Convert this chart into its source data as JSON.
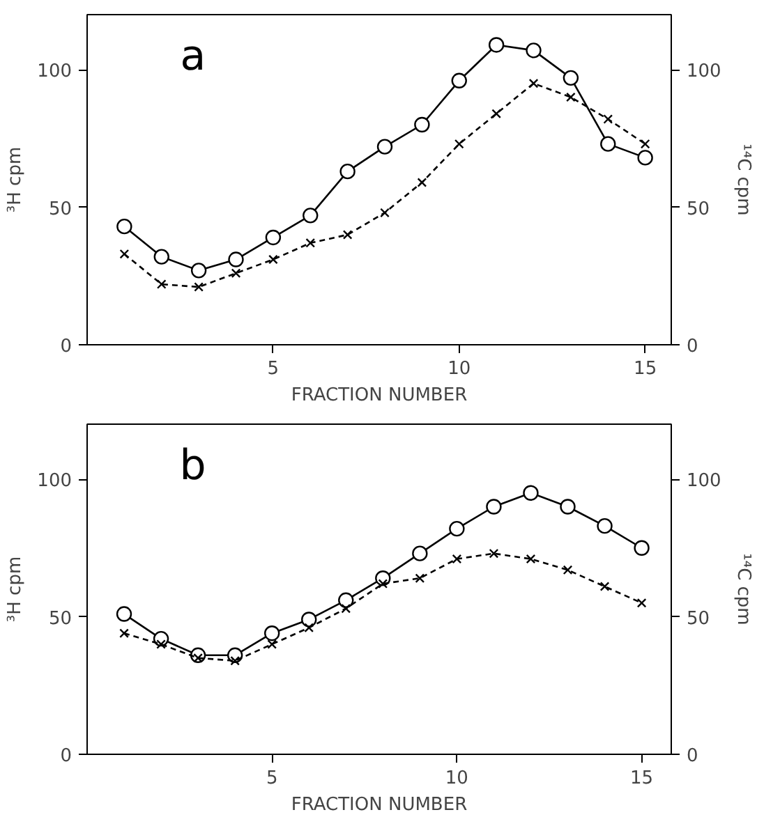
{
  "chart_data": [
    {
      "type": "line",
      "title": "a",
      "xlabel": "FRACTION NUMBER",
      "ylabel": "³H cpm",
      "y2label": "¹⁴C cpm",
      "x": [
        1,
        2,
        3,
        4,
        5,
        6,
        7,
        8,
        9,
        10,
        11,
        12,
        13,
        14,
        15
      ],
      "xlim": [
        0,
        15.7
      ],
      "xticks": [
        5,
        10,
        15
      ],
      "ylim": [
        0,
        120
      ],
      "yticks": [
        0,
        50,
        100
      ],
      "y2lim": [
        0,
        120
      ],
      "y2ticks": [
        0,
        50,
        100
      ],
      "grid": false,
      "series": [
        {
          "color": "#000000",
          "marker": "circle",
          "line_style": "solid",
          "values": [
            43,
            32,
            27,
            31,
            39,
            47,
            63,
            72,
            80,
            96,
            109,
            107,
            97,
            73,
            68
          ]
        },
        {
          "color": "#000000",
          "marker": "cross",
          "line_style": "dashed",
          "axis": "y2",
          "values": [
            33,
            22,
            21,
            26,
            31,
            37,
            40,
            48,
            59,
            73,
            84,
            95,
            90,
            82,
            73
          ]
        }
      ]
    },
    {
      "type": "line",
      "title": "b",
      "xlabel": "FRACTION NUMBER",
      "ylabel": "³H cpm",
      "y2label": "¹⁴C cpm",
      "x": [
        1,
        2,
        3,
        4,
        5,
        6,
        7,
        8,
        9,
        10,
        11,
        12,
        13,
        14,
        15
      ],
      "xlim": [
        0,
        15.8
      ],
      "xticks": [
        5,
        10,
        15
      ],
      "ylim": [
        0,
        120
      ],
      "yticks": [
        0,
        50,
        100
      ],
      "y2lim": [
        0,
        120
      ],
      "y2ticks": [
        0,
        50,
        100
      ],
      "grid": false,
      "series": [
        {
          "color": "#000000",
          "marker": "circle",
          "line_style": "solid",
          "values": [
            51,
            42,
            36,
            36,
            44,
            49,
            56,
            64,
            73,
            82,
            90,
            95,
            90,
            83,
            75
          ]
        },
        {
          "color": "#000000",
          "marker": "cross",
          "line_style": "dashed",
          "axis": "y2",
          "values": [
            44,
            40,
            35,
            34,
            40,
            46,
            53,
            62,
            64,
            71,
            73,
            71,
            67,
            61,
            55
          ]
        }
      ]
    }
  ]
}
